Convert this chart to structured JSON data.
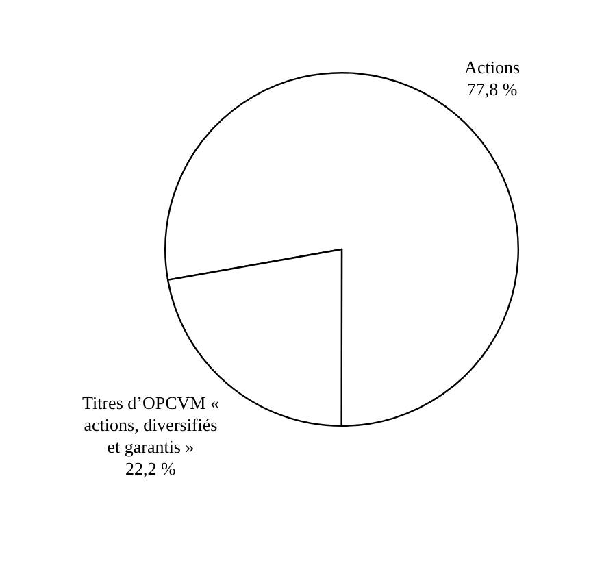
{
  "chart_data": {
    "type": "pie",
    "categories": [
      "Actions",
      "Titres d’OPCVM « actions, diversifiés et garantis »"
    ],
    "values": [
      77.8,
      22.2
    ],
    "value_labels": [
      "77,8 %",
      "22,2 %"
    ],
    "colors": [
      "#ffffff",
      "#ffffff"
    ]
  }
}
